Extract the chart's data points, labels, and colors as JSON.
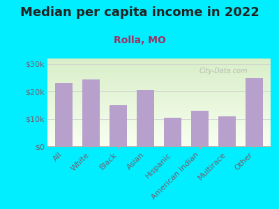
{
  "title": "Median per capita income in 2022",
  "subtitle": "Rolla, MO",
  "categories": [
    "All",
    "White",
    "Black",
    "Asian",
    "Hispanic",
    "American Indian",
    "Multirace",
    "Other"
  ],
  "values": [
    23000,
    24500,
    15000,
    20500,
    10500,
    13000,
    11000,
    25000
  ],
  "bar_color": "#b8a0cc",
  "background_outer": "#00eeff",
  "title_color": "#222222",
  "subtitle_color": "#a03060",
  "axis_label_color": "#706070",
  "ytick_labels": [
    "$0",
    "$10k",
    "$20k",
    "$30k"
  ],
  "ytick_values": [
    0,
    10000,
    20000,
    30000
  ],
  "ylim": [
    0,
    32000
  ],
  "watermark": "City-Data.com",
  "title_fontsize": 13,
  "subtitle_fontsize": 10,
  "tick_fontsize": 8
}
